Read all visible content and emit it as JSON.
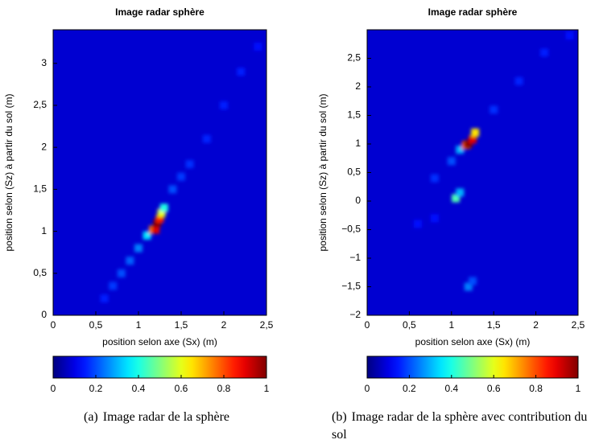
{
  "chart_data": [
    {
      "type": "heatmap",
      "title": "Image radar sphère",
      "xlabel": "position selon axe (Sx) (m)",
      "ylabel": "position selon (Sz) à partir du sol (m)",
      "xlim": [
        0,
        2.5
      ],
      "ylim": [
        0,
        3.4
      ],
      "xticks": [
        0,
        {
          "value": 0.5,
          "label": "0,5"
        },
        1,
        {
          "value": 1.5,
          "label": "1,5"
        },
        2,
        {
          "value": 2.5,
          "label": "2,5"
        }
      ],
      "yticks": [
        0,
        {
          "value": 0.5,
          "label": "0,5"
        },
        1,
        {
          "value": 1.5,
          "label": "1,5"
        },
        2,
        {
          "value": 2.5,
          "label": "2,5"
        },
        3
      ],
      "background": 0.08,
      "x": [
        0.6,
        0.7,
        0.8,
        0.9,
        1.0,
        1.1,
        1.17,
        1.2,
        1.22,
        1.25,
        1.27,
        1.3,
        1.4,
        1.5,
        1.6,
        1.8,
        2.0,
        2.2,
        2.4
      ],
      "y": [
        0.2,
        0.35,
        0.5,
        0.65,
        0.8,
        0.95,
        1.02,
        1.02,
        1.1,
        1.15,
        1.22,
        1.28,
        1.5,
        1.65,
        1.8,
        2.1,
        2.5,
        2.9,
        3.2
      ],
      "values": [
        0.15,
        0.18,
        0.2,
        0.22,
        0.25,
        0.35,
        0.75,
        0.9,
        1,
        0.85,
        0.6,
        0.4,
        0.2,
        0.18,
        0.17,
        0.16,
        0.15,
        0.15,
        0.14
      ],
      "clim": [
        0,
        1
      ],
      "cticks": [
        0,
        0.2,
        0.4,
        0.6,
        0.8,
        1
      ],
      "caption": {
        "label": "(a)",
        "text": "Image radar de la sphère"
      }
    },
    {
      "type": "heatmap",
      "title": "Image radar sphère",
      "xlabel": "position selon axe (Sx) (m)",
      "ylabel": "position selon (Sz) à partir du sol (m)",
      "xlim": [
        0,
        2.5
      ],
      "ylim": [
        -2,
        3
      ],
      "xticks": [
        0,
        {
          "value": 0.5,
          "label": "0,5"
        },
        1,
        {
          "value": 1.5,
          "label": "1,5"
        },
        2,
        {
          "value": 2.5,
          "label": "2,5"
        }
      ],
      "yticks": [
        {
          "value": -2,
          "label": "−2"
        },
        {
          "value": -1.5,
          "label": "−1,5"
        },
        {
          "value": -1,
          "label": "−1"
        },
        {
          "value": -0.5,
          "label": "−0,5"
        },
        0,
        {
          "value": 0.5,
          "label": "0,5"
        },
        1,
        {
          "value": 1.5,
          "label": "1,5"
        },
        2,
        {
          "value": 2.5,
          "label": "2,5"
        }
      ],
      "background": 0.08,
      "x": [
        0.6,
        0.8,
        1.0,
        1.05,
        1.1,
        1.1,
        1.17,
        1.2,
        1.25,
        1.28,
        1.5,
        1.8,
        2.1,
        2.4,
        0.8,
        1.2,
        1.25
      ],
      "y": [
        -0.4,
        0.4,
        0.7,
        0.05,
        0.15,
        0.9,
        0.98,
        1.0,
        1.08,
        1.2,
        1.6,
        2.1,
        2.6,
        2.9,
        -0.3,
        -1.5,
        -1.4
      ],
      "values": [
        0.14,
        0.17,
        0.2,
        0.45,
        0.3,
        0.3,
        0.8,
        1,
        0.9,
        0.65,
        0.17,
        0.16,
        0.15,
        0.14,
        0.14,
        0.25,
        0.2
      ],
      "clim": [
        0,
        1
      ],
      "cticks": [
        0,
        0.2,
        0.4,
        0.6,
        0.8,
        1
      ],
      "caption": {
        "label": "(b)",
        "text": "Image radar de la sphère avec contribution du sol"
      }
    }
  ]
}
